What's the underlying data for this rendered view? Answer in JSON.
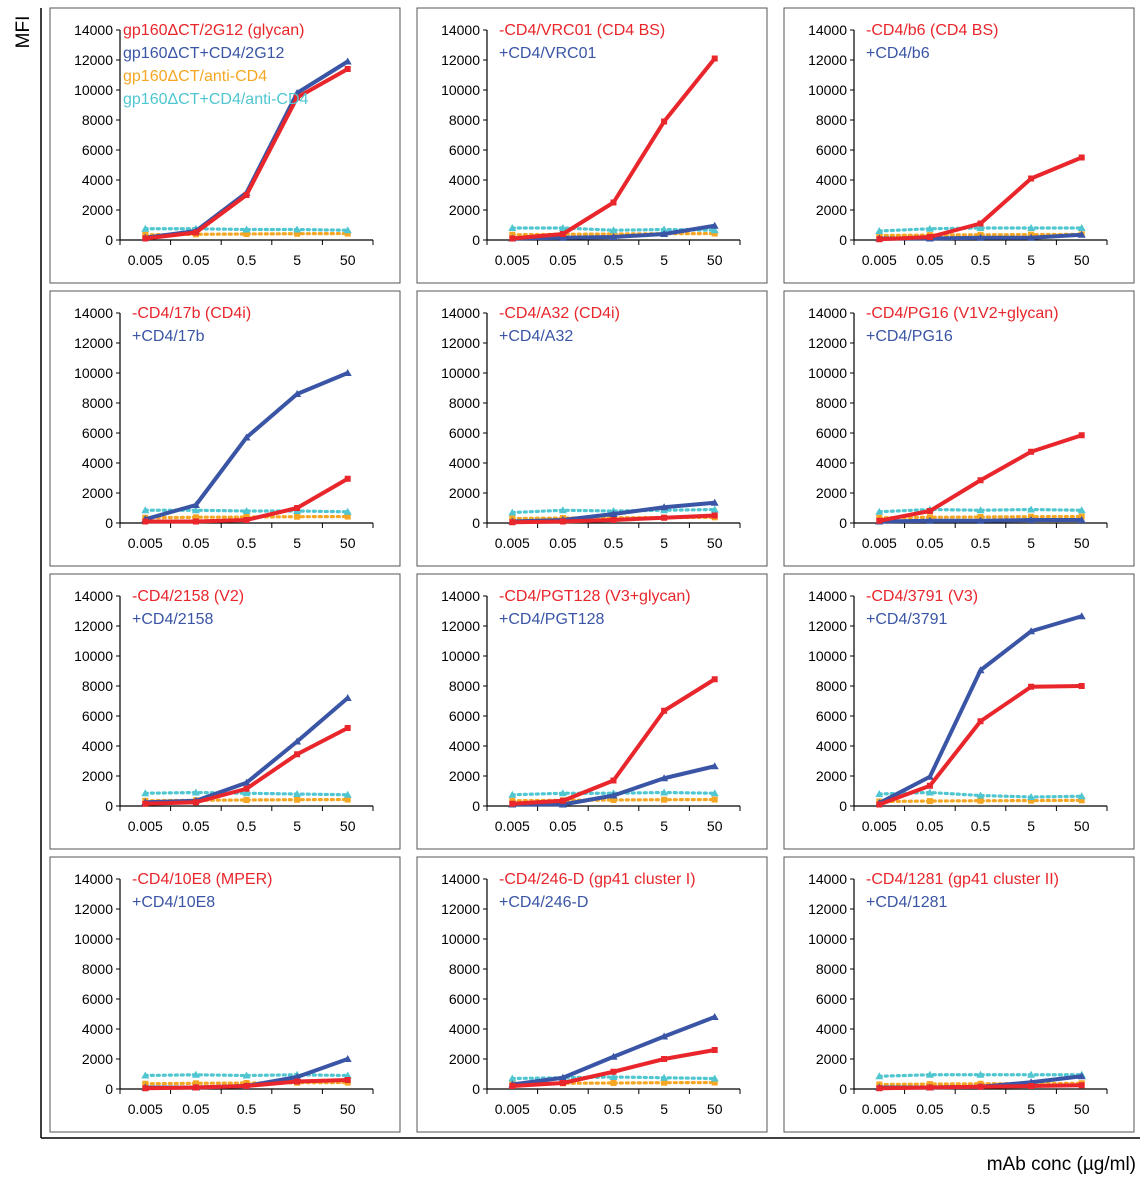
{
  "figure": {
    "ylabel": "MFI",
    "xlabel": "mAb conc (µg/ml)"
  },
  "chart_data": {
    "type": "line",
    "grid": false,
    "x": [
      "0.005",
      "0.05",
      "0.5",
      "5",
      "50"
    ],
    "ylim": [
      0,
      14000
    ],
    "yticks": [
      0,
      2000,
      4000,
      6000,
      8000,
      10000,
      12000,
      14000
    ],
    "colors": {
      "minus": "#e8262b",
      "plus": "#3a55a5",
      "anti_minus": "#f5a623",
      "anti_plus": "#4fc6d0"
    },
    "panels": [
      {
        "legend": [
          {
            "text": "gp160ΔCT/2G12 (glycan)",
            "color": "#e8262b"
          },
          {
            "text": "gp160ΔCT+CD4/2G12",
            "color": "#3a55a5"
          },
          {
            "text": "gp160ΔCT/anti-CD4",
            "color": "#f5a623"
          },
          {
            "text": "gp160ΔCT+CD4/anti-CD4",
            "color": "#4fc6d0"
          }
        ],
        "series": [
          {
            "key": "anti_minus",
            "values": [
              350,
              380,
              400,
              420,
              430
            ]
          },
          {
            "key": "anti_plus",
            "values": [
              750,
              750,
              700,
              700,
              650
            ]
          },
          {
            "key": "plus",
            "values": [
              150,
              600,
              3150,
              9800,
              11900
            ]
          },
          {
            "key": "minus",
            "values": [
              100,
              500,
              3000,
              9500,
              11400
            ]
          }
        ]
      },
      {
        "legend": [
          {
            "text": "-CD4/VRC01 (CD4 BS)",
            "color": "#e8262b"
          },
          {
            "text": "+CD4/VRC01",
            "color": "#3a55a5"
          }
        ],
        "series": [
          {
            "key": "anti_minus",
            "values": [
              350,
              380,
              400,
              420,
              430
            ]
          },
          {
            "key": "anti_plus",
            "values": [
              800,
              800,
              650,
              700,
              650
            ]
          },
          {
            "key": "plus",
            "values": [
              100,
              150,
              200,
              400,
              950
            ]
          },
          {
            "key": "minus",
            "values": [
              100,
              400,
              2500,
              7900,
              12100
            ]
          }
        ]
      },
      {
        "legend": [
          {
            "text": "-CD4/b6 (CD4 BS)",
            "color": "#e8262b"
          },
          {
            "text": "+CD4/b6",
            "color": "#3a55a5"
          }
        ],
        "series": [
          {
            "key": "anti_minus",
            "values": [
              300,
              330,
              350,
              360,
              380
            ]
          },
          {
            "key": "anti_plus",
            "values": [
              600,
              750,
              800,
              800,
              800
            ]
          },
          {
            "key": "plus",
            "values": [
              100,
              100,
              150,
              150,
              350
            ]
          },
          {
            "key": "minus",
            "values": [
              50,
              200,
              1100,
              4100,
              5500
            ]
          }
        ]
      },
      {
        "legend": [
          {
            "text": "-CD4/17b (CD4i)",
            "color": "#e8262b"
          },
          {
            "text": "+CD4/17b",
            "color": "#3a55a5"
          }
        ],
        "series": [
          {
            "key": "anti_minus",
            "values": [
              350,
              380,
              400,
              420,
              430
            ]
          },
          {
            "key": "anti_plus",
            "values": [
              850,
              850,
              800,
              800,
              750
            ]
          },
          {
            "key": "plus",
            "values": [
              250,
              1200,
              5700,
              8600,
              10000
            ]
          },
          {
            "key": "minus",
            "values": [
              100,
              100,
              200,
              1000,
              2950
            ]
          }
        ]
      },
      {
        "legend": [
          {
            "text": "-CD4/A32 (CD4i)",
            "color": "#e8262b"
          },
          {
            "text": "+CD4/A32",
            "color": "#3a55a5"
          }
        ],
        "series": [
          {
            "key": "anti_minus",
            "values": [
              300,
              330,
              350,
              360,
              380
            ]
          },
          {
            "key": "anti_plus",
            "values": [
              700,
              850,
              800,
              850,
              900
            ]
          },
          {
            "key": "plus",
            "values": [
              100,
              200,
              600,
              1050,
              1350
            ]
          },
          {
            "key": "minus",
            "values": [
              50,
              100,
              200,
              350,
              500
            ]
          }
        ]
      },
      {
        "legend": [
          {
            "text": "-CD4/PG16 (V1V2+glycan)",
            "color": "#e8262b"
          },
          {
            "text": "+CD4/PG16",
            "color": "#3a55a5"
          }
        ],
        "series": [
          {
            "key": "anti_minus",
            "values": [
              350,
              380,
              400,
              420,
              430
            ]
          },
          {
            "key": "anti_plus",
            "values": [
              750,
              900,
              850,
              900,
              850
            ]
          },
          {
            "key": "plus",
            "values": [
              100,
              150,
              150,
              200,
              200
            ]
          },
          {
            "key": "minus",
            "values": [
              150,
              800,
              2850,
              4750,
              5850
            ]
          }
        ]
      },
      {
        "legend": [
          {
            "text": "-CD4/2158 (V2)",
            "color": "#e8262b"
          },
          {
            "text": "+CD4/2158",
            "color": "#3a55a5"
          }
        ],
        "series": [
          {
            "key": "anti_minus",
            "values": [
              350,
              380,
              400,
              420,
              430
            ]
          },
          {
            "key": "anti_plus",
            "values": [
              850,
              900,
              850,
              800,
              750
            ]
          },
          {
            "key": "plus",
            "values": [
              250,
              350,
              1550,
              4300,
              7200
            ]
          },
          {
            "key": "minus",
            "values": [
              150,
              250,
              1150,
              3450,
              5200
            ]
          }
        ]
      },
      {
        "legend": [
          {
            "text": "-CD4/PGT128 (V3+glycan)",
            "color": "#e8262b"
          },
          {
            "text": "+CD4/PGT128",
            "color": "#3a55a5"
          }
        ],
        "series": [
          {
            "key": "anti_minus",
            "values": [
              350,
              380,
              400,
              420,
              430
            ]
          },
          {
            "key": "anti_plus",
            "values": [
              750,
              850,
              850,
              900,
              850
            ]
          },
          {
            "key": "plus",
            "values": [
              100,
              100,
              700,
              1850,
              2650
            ]
          },
          {
            "key": "minus",
            "values": [
              150,
              350,
              1700,
              6350,
              8450
            ]
          }
        ]
      },
      {
        "legend": [
          {
            "text": "-CD4/3791 (V3)",
            "color": "#e8262b"
          },
          {
            "text": "+CD4/3791",
            "color": "#3a55a5"
          }
        ],
        "series": [
          {
            "key": "anti_minus",
            "values": [
              300,
              330,
              350,
              360,
              380
            ]
          },
          {
            "key": "anti_plus",
            "values": [
              800,
              900,
              700,
              600,
              650
            ]
          },
          {
            "key": "plus",
            "values": [
              200,
              1950,
              9050,
              11650,
              12650
            ]
          },
          {
            "key": "minus",
            "values": [
              100,
              1350,
              5650,
              7950,
              8000
            ]
          }
        ]
      },
      {
        "legend": [
          {
            "text": "-CD4/10E8 (MPER)",
            "color": "#e8262b"
          },
          {
            "text": "+CD4/10E8",
            "color": "#3a55a5"
          }
        ],
        "series": [
          {
            "key": "anti_minus",
            "values": [
              350,
              380,
              400,
              420,
              430
            ]
          },
          {
            "key": "anti_plus",
            "values": [
              900,
              950,
              900,
              950,
              900
            ]
          },
          {
            "key": "plus",
            "values": [
              100,
              100,
              200,
              800,
              2000
            ]
          },
          {
            "key": "minus",
            "values": [
              50,
              100,
              200,
              500,
              600
            ]
          }
        ]
      },
      {
        "legend": [
          {
            "text": "-CD4/246-D (gp41 cluster I)",
            "color": "#e8262b"
          },
          {
            "text": "+CD4/246-D",
            "color": "#3a55a5"
          }
        ],
        "series": [
          {
            "key": "anti_minus",
            "values": [
              350,
              380,
              400,
              420,
              430
            ]
          },
          {
            "key": "anti_plus",
            "values": [
              700,
              750,
              800,
              750,
              700
            ]
          },
          {
            "key": "plus",
            "values": [
              300,
              750,
              2150,
              3500,
              4800
            ]
          },
          {
            "key": "minus",
            "values": [
              200,
              400,
              1150,
              2000,
              2600
            ]
          }
        ]
      },
      {
        "legend": [
          {
            "text": "-CD4/1281 (gp41 cluster II)",
            "color": "#e8262b"
          },
          {
            "text": "+CD4/1281",
            "color": "#3a55a5"
          }
        ],
        "series": [
          {
            "key": "anti_minus",
            "values": [
              300,
              330,
              350,
              360,
              380
            ]
          },
          {
            "key": "anti_plus",
            "values": [
              850,
              950,
              950,
              950,
              950
            ]
          },
          {
            "key": "plus",
            "values": [
              100,
              100,
              150,
              450,
              850
            ]
          },
          {
            "key": "minus",
            "values": [
              50,
              100,
              150,
              200,
              250
            ]
          }
        ]
      }
    ]
  }
}
